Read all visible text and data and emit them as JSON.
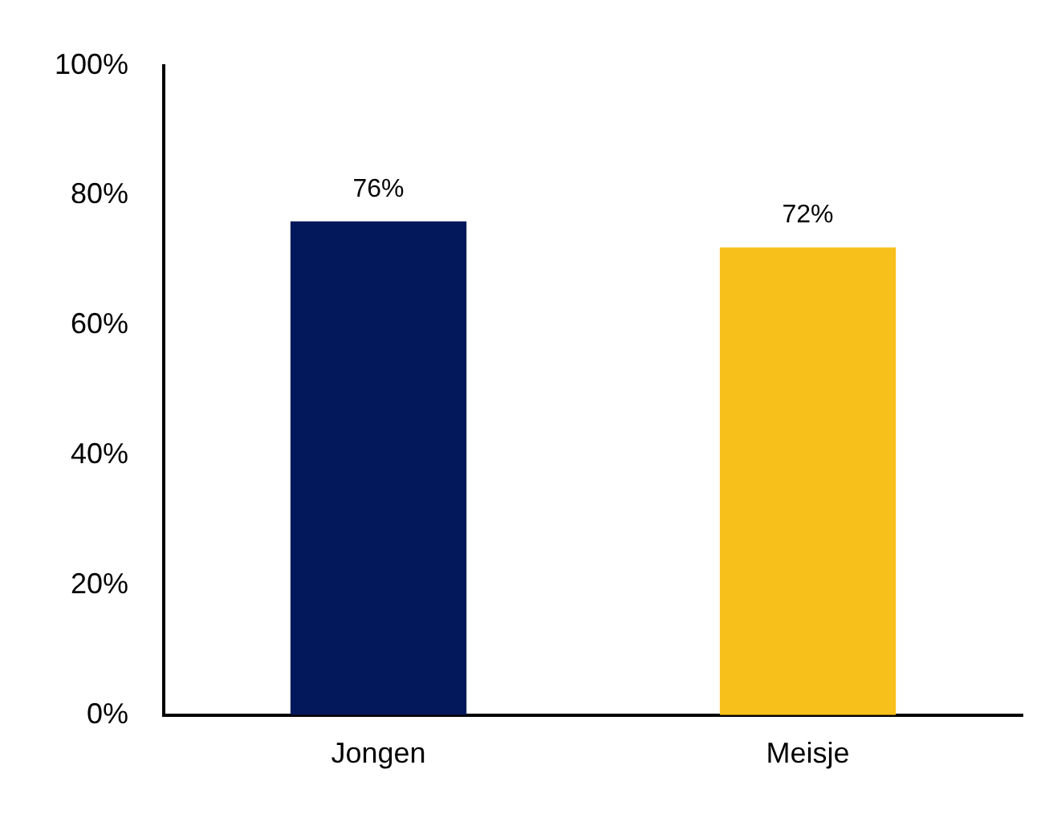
{
  "chart_data": {
    "type": "bar",
    "categories": [
      "Jongen",
      "Meisje"
    ],
    "values": [
      76,
      72
    ],
    "colors": [
      "#03185a",
      "#f8c01a"
    ],
    "value_labels": [
      "76%",
      "72%"
    ],
    "ylim": [
      0,
      100
    ],
    "yticks": [
      {
        "value": 0,
        "label": "0%"
      },
      {
        "value": 20,
        "label": "20%"
      },
      {
        "value": 40,
        "label": "40%"
      },
      {
        "value": 60,
        "label": "60%"
      },
      {
        "value": 80,
        "label": "80%"
      },
      {
        "value": 100,
        "label": "100%"
      }
    ],
    "grid": false
  }
}
